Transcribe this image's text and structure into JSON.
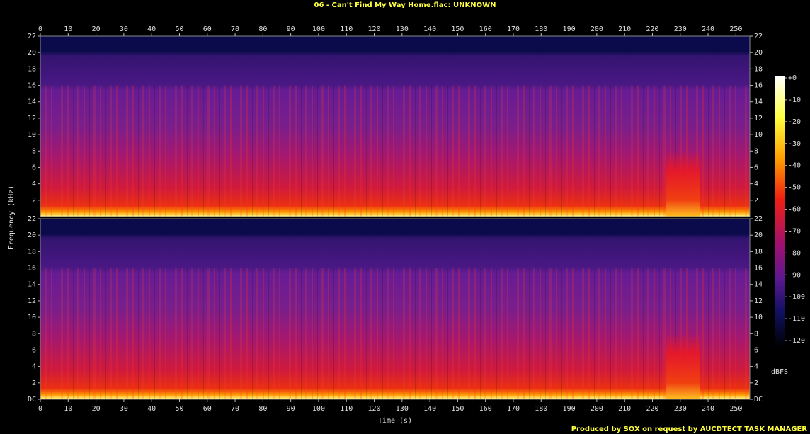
{
  "chart_data": {
    "type": "spectrogram",
    "title": "06 - Can't Find My Way Home.flac: UNKNOWN",
    "xlabel": "Time (s)",
    "ylabel": "Frequency (kHz)",
    "caption": "Produced by SOX on request by AUCDTECT TASK MANAGER",
    "xlim": [
      0,
      255
    ],
    "xticks": [
      0,
      10,
      20,
      30,
      40,
      50,
      60,
      70,
      80,
      90,
      100,
      110,
      120,
      130,
      140,
      150,
      160,
      170,
      180,
      190,
      200,
      210,
      220,
      230,
      240,
      250
    ],
    "panels": [
      {
        "ylim": [
          0,
          22
        ],
        "yticks": [
          2,
          4,
          6,
          8,
          10,
          12,
          14,
          16,
          18,
          20,
          22
        ]
      },
      {
        "ylim": [
          0,
          22
        ],
        "yticks": [
          {
            "value": 0,
            "label": "DC"
          },
          2,
          4,
          6,
          8,
          10,
          12,
          14,
          16,
          18,
          20,
          22
        ]
      }
    ],
    "colorbar": {
      "label": "dBFS",
      "lim": [
        -120,
        0
      ],
      "ticks": [
        {
          "value": 0,
          "label": "+0"
        },
        -10,
        -20,
        -30,
        -40,
        -50,
        -60,
        -70,
        -80,
        -90,
        -100,
        -110,
        -120
      ]
    }
  }
}
